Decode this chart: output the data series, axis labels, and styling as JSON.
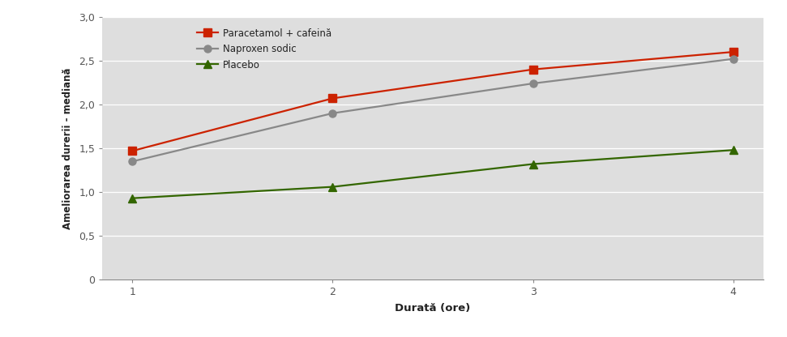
{
  "x": [
    1,
    2,
    3,
    4
  ],
  "paracetamol_caffeine": [
    1.47,
    2.07,
    2.4,
    2.6
  ],
  "naproxen": [
    1.35,
    1.9,
    2.24,
    2.52
  ],
  "placebo": [
    0.93,
    1.06,
    1.32,
    1.48
  ],
  "line_color_paracetamol": "#cc2200",
  "line_color_naproxen": "#888888",
  "line_color_placebo": "#336600",
  "marker_paracetamol": "s",
  "marker_naproxen": "o",
  "marker_placebo": "^",
  "label_paracetamol": "Paracetamol + cafeină",
  "label_naproxen": "Naproxen sodic",
  "label_placebo": "Placebo",
  "xlabel": "Durată (ore)",
  "ylabel": "Ameliorarea durerii - mediană",
  "ylim": [
    0,
    3.0
  ],
  "yticks": [
    0,
    0.5,
    1.0,
    1.5,
    2.0,
    2.5,
    3.0
  ],
  "ytick_labels": [
    "0",
    "0,5",
    "1,0",
    "1,5",
    "2,0",
    "2,5",
    "3,0"
  ],
  "xticks": [
    1,
    2,
    3,
    4
  ],
  "axes_bg_color": "#dedede",
  "fig_bg_color": "#ffffff",
  "grid_color": "#ffffff",
  "tick_color": "#555555",
  "label_color": "#222222",
  "linewidth": 1.6,
  "markersize": 6.5
}
